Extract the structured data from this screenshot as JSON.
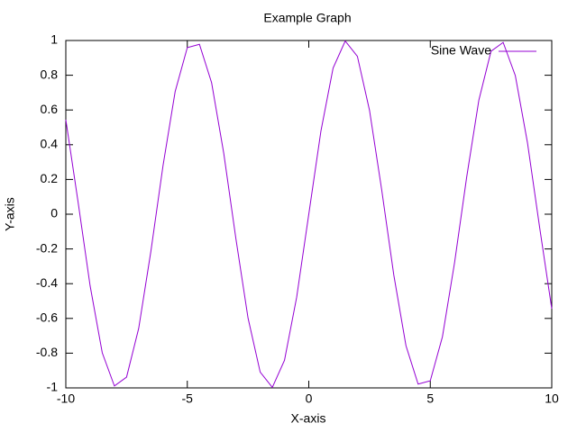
{
  "chart_data": {
    "type": "line",
    "title": "Example Graph",
    "xlabel": "X-axis",
    "ylabel": "Y-axis",
    "x": [
      -10,
      -9.5,
      -9,
      -8.5,
      -8,
      -7.5,
      -7,
      -6.5,
      -6,
      -5.5,
      -5,
      -4.5,
      -4,
      -3.5,
      -3,
      -2.5,
      -2,
      -1.5,
      -1,
      -0.5,
      0,
      0.5,
      1,
      1.5,
      2,
      2.5,
      3,
      3.5,
      4,
      4.5,
      5,
      5.5,
      6,
      6.5,
      7,
      7.5,
      8,
      8.5,
      9,
      9.5,
      10
    ],
    "series": [
      {
        "name": "Sine Wave",
        "color": "#9400d3",
        "values": [
          0.544,
          0.075,
          -0.412,
          -0.798,
          -0.989,
          -0.938,
          -0.657,
          -0.215,
          0.279,
          0.706,
          0.959,
          0.978,
          0.757,
          0.351,
          -0.141,
          -0.598,
          -0.909,
          -0.997,
          -0.841,
          -0.479,
          0,
          0.479,
          0.841,
          0.997,
          0.909,
          0.598,
          0.141,
          -0.351,
          -0.757,
          -0.978,
          -0.959,
          -0.706,
          -0.279,
          0.215,
          0.657,
          0.938,
          0.989,
          0.798,
          0.412,
          -0.075,
          -0.544
        ]
      }
    ],
    "xlim": [
      -10,
      10
    ],
    "xticks": [
      -10,
      -5,
      0,
      5,
      10
    ],
    "ylim": [
      -1,
      1
    ],
    "yticks": [
      -1,
      -0.8,
      -0.6,
      -0.4,
      -0.2,
      0,
      0.2,
      0.4,
      0.6,
      0.8,
      1
    ],
    "legend": "top-right"
  }
}
